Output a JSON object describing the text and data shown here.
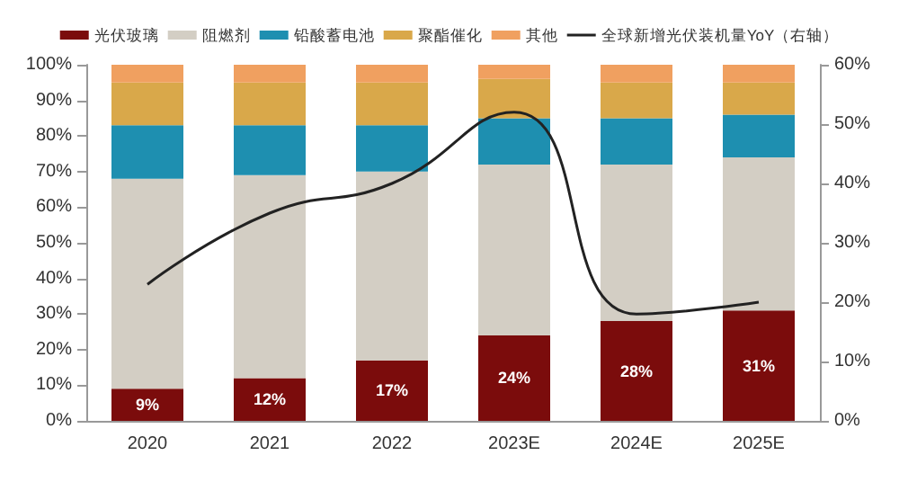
{
  "chart_data": {
    "type": "bar",
    "stacked": true,
    "categories": [
      "2020",
      "2021",
      "2022",
      "2023E",
      "2024E",
      "2025E"
    ],
    "series": [
      {
        "name": "光伏玻璃",
        "color": "#7b0c0c",
        "values": [
          9,
          12,
          17,
          24,
          28,
          31
        ],
        "value_labels": [
          "9%",
          "12%",
          "17%",
          "24%",
          "28%",
          "31%"
        ]
      },
      {
        "name": "阻燃剂",
        "color": "#d3cec4",
        "values": [
          59,
          57,
          53,
          48,
          44,
          43
        ]
      },
      {
        "name": "铅酸蓄电池",
        "color": "#1e8fb0",
        "values": [
          15,
          14,
          13,
          13,
          13,
          12
        ]
      },
      {
        "name": "聚酯催化",
        "color": "#d9a84a",
        "values": [
          12,
          12,
          12,
          11,
          10,
          9
        ]
      },
      {
        "name": "其他",
        "color": "#f0a060",
        "values": [
          5,
          5,
          5,
          4,
          5,
          5
        ]
      },
      {
        "name": "全球新增光伏装机量YoY（右轴）",
        "type": "line",
        "axis": "y2",
        "color": "#222222",
        "marker": "none",
        "values": [
          23,
          35,
          40,
          52,
          18,
          20
        ]
      }
    ],
    "ylim": [
      0,
      100
    ],
    "yticks": [
      {
        "value": 0,
        "label": "0%"
      },
      {
        "value": 10,
        "label": "10%"
      },
      {
        "value": 20,
        "label": "20%"
      },
      {
        "value": 30,
        "label": "30%"
      },
      {
        "value": 40,
        "label": "40%"
      },
      {
        "value": 50,
        "label": "50%"
      },
      {
        "value": 60,
        "label": "60%"
      },
      {
        "value": 70,
        "label": "70%"
      },
      {
        "value": 80,
        "label": "80%"
      },
      {
        "value": 90,
        "label": "90%"
      },
      {
        "value": 100,
        "label": "100%"
      }
    ],
    "y2lim": [
      0,
      60
    ],
    "y2ticks": [
      {
        "value": 0,
        "label": "0%"
      },
      {
        "value": 10,
        "label": "10%"
      },
      {
        "value": 20,
        "label": "20%"
      },
      {
        "value": 30,
        "label": "30%"
      },
      {
        "value": 40,
        "label": "40%"
      },
      {
        "value": 50,
        "label": "50%"
      },
      {
        "value": 60,
        "label": "60%"
      }
    ],
    "grid": false,
    "legend": "top"
  }
}
